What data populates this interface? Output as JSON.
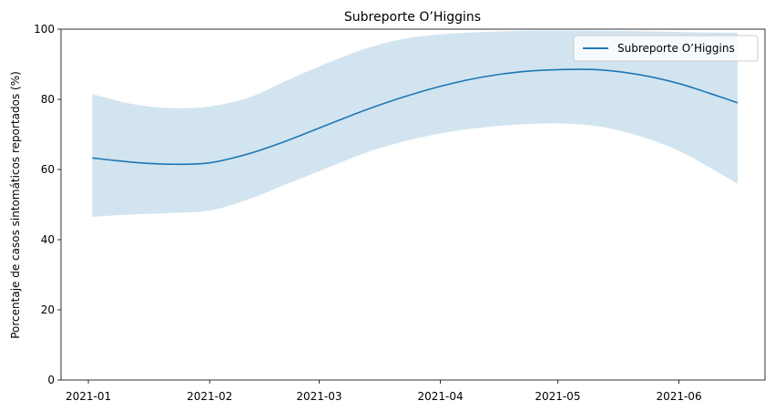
{
  "chart_data": {
    "type": "line",
    "title": "Subreporte O’Higgins",
    "xlabel": "",
    "ylabel": "Porcentaje de casos sintomáticos reportados (%)",
    "xticks": [
      "2021-01",
      "2021-02",
      "2021-03",
      "2021-04",
      "2021-05",
      "2021-06"
    ],
    "yticks": [
      0,
      20,
      40,
      60,
      80,
      100
    ],
    "ylim": [
      0,
      100
    ],
    "xlim": [
      "2020-12-25",
      "2021-06-23"
    ],
    "grid": false,
    "legend_position": "top-right",
    "series": [
      {
        "name": "Subreporte O’Higgins",
        "color": "#1f77b4",
        "band_color": "#1f77b4",
        "x": [
          "2021-01-02",
          "2021-01-12",
          "2021-01-22",
          "2021-02-01",
          "2021-02-11",
          "2021-02-21",
          "2021-03-03",
          "2021-03-13",
          "2021-03-23",
          "2021-04-02",
          "2021-04-12",
          "2021-04-22",
          "2021-05-02",
          "2021-05-12",
          "2021-05-22",
          "2021-06-01",
          "2021-06-11",
          "2021-06-16"
        ],
        "y": [
          63.3,
          62.1,
          61.5,
          61.9,
          64.5,
          68.3,
          72.7,
          77.0,
          80.8,
          84.0,
          86.4,
          87.9,
          88.5,
          88.4,
          87.0,
          84.5,
          80.9,
          79.0
        ],
        "lower": [
          46.5,
          47.2,
          47.6,
          48.3,
          51.5,
          56.0,
          60.4,
          64.8,
          68.1,
          70.5,
          72.0,
          72.9,
          73.1,
          72.2,
          69.5,
          65.3,
          59.2,
          56.0
        ],
        "upper": [
          81.5,
          78.7,
          77.5,
          78.0,
          80.5,
          85.5,
          90.3,
          94.5,
          97.3,
          98.6,
          99.2,
          99.5,
          99.6,
          99.5,
          99.4,
          99.2,
          99.0,
          99.0
        ]
      }
    ]
  }
}
